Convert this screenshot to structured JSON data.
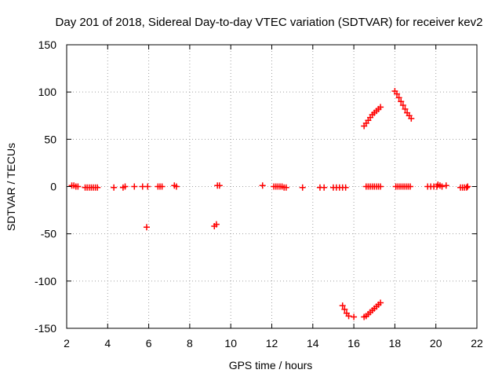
{
  "chart_data": {
    "type": "scatter",
    "title": "Day 201 of 2018, Sidereal Day-to-day VTEC variation (SDTVAR) for receiver kev2",
    "xlabel": "GPS time / hours",
    "ylabel": "SDTVAR / TECUs",
    "xlim": [
      2,
      22
    ],
    "ylim": [
      -150,
      150
    ],
    "xticks": [
      2,
      4,
      6,
      8,
      10,
      12,
      14,
      16,
      18,
      20,
      22
    ],
    "yticks": [
      -150,
      -100,
      -50,
      0,
      50,
      100,
      150
    ],
    "grid": true,
    "marker": "plus",
    "color": "#ff0000",
    "series": [
      {
        "name": "SDTVAR",
        "points": [
          [
            2.25,
            1
          ],
          [
            2.35,
            1
          ],
          [
            2.45,
            0
          ],
          [
            2.55,
            0
          ],
          [
            2.9,
            -1
          ],
          [
            3.0,
            -1
          ],
          [
            3.1,
            -1
          ],
          [
            3.2,
            -1
          ],
          [
            3.3,
            -1
          ],
          [
            3.4,
            -1
          ],
          [
            3.5,
            -1
          ],
          [
            4.3,
            -1
          ],
          [
            4.75,
            -1
          ],
          [
            4.85,
            0
          ],
          [
            5.3,
            0
          ],
          [
            5.7,
            0
          ],
          [
            5.9,
            -43
          ],
          [
            5.95,
            0
          ],
          [
            6.45,
            0
          ],
          [
            6.55,
            0
          ],
          [
            6.65,
            0
          ],
          [
            7.25,
            1
          ],
          [
            7.35,
            0
          ],
          [
            9.2,
            -42
          ],
          [
            9.3,
            -40
          ],
          [
            9.35,
            1
          ],
          [
            9.45,
            1
          ],
          [
            11.55,
            1
          ],
          [
            12.1,
            0
          ],
          [
            12.2,
            0
          ],
          [
            12.3,
            0
          ],
          [
            12.4,
            0
          ],
          [
            12.5,
            0
          ],
          [
            12.6,
            -1
          ],
          [
            12.7,
            -1
          ],
          [
            13.5,
            -1
          ],
          [
            14.35,
            -1
          ],
          [
            14.55,
            -1
          ],
          [
            15.0,
            -1
          ],
          [
            15.15,
            -1
          ],
          [
            15.3,
            -1
          ],
          [
            15.45,
            -1
          ],
          [
            15.6,
            -1
          ],
          [
            15.45,
            -126
          ],
          [
            15.55,
            -130
          ],
          [
            15.65,
            -134
          ],
          [
            15.75,
            -137
          ],
          [
            16.0,
            -138
          ],
          [
            16.5,
            -138
          ],
          [
            16.6,
            -137
          ],
          [
            16.7,
            -135
          ],
          [
            16.8,
            -133
          ],
          [
            16.9,
            -131
          ],
          [
            17.0,
            -129
          ],
          [
            17.1,
            -127
          ],
          [
            17.2,
            -125
          ],
          [
            17.3,
            -123
          ],
          [
            16.5,
            64
          ],
          [
            16.6,
            67
          ],
          [
            16.7,
            70
          ],
          [
            16.8,
            73
          ],
          [
            16.9,
            76
          ],
          [
            17.0,
            78
          ],
          [
            17.1,
            80
          ],
          [
            17.2,
            82
          ],
          [
            17.3,
            84
          ],
          [
            16.6,
            0
          ],
          [
            16.7,
            0
          ],
          [
            16.8,
            0
          ],
          [
            16.9,
            0
          ],
          [
            17.0,
            0
          ],
          [
            17.1,
            0
          ],
          [
            17.2,
            0
          ],
          [
            17.3,
            0
          ],
          [
            18.0,
            101
          ],
          [
            18.1,
            98
          ],
          [
            18.2,
            94
          ],
          [
            18.3,
            90
          ],
          [
            18.4,
            86
          ],
          [
            18.5,
            82
          ],
          [
            18.6,
            78
          ],
          [
            18.7,
            75
          ],
          [
            18.8,
            72
          ],
          [
            18.05,
            0
          ],
          [
            18.15,
            0
          ],
          [
            18.25,
            0
          ],
          [
            18.35,
            0
          ],
          [
            18.45,
            0
          ],
          [
            18.55,
            0
          ],
          [
            18.65,
            0
          ],
          [
            18.75,
            0
          ],
          [
            19.6,
            0
          ],
          [
            19.75,
            0
          ],
          [
            19.9,
            0
          ],
          [
            20.05,
            0
          ],
          [
            20.1,
            2
          ],
          [
            20.2,
            1
          ],
          [
            20.3,
            0
          ],
          [
            20.5,
            1
          ],
          [
            21.2,
            -1
          ],
          [
            21.3,
            -1
          ],
          [
            21.4,
            -1
          ],
          [
            21.5,
            -1
          ],
          [
            21.55,
            0
          ]
        ]
      }
    ]
  }
}
